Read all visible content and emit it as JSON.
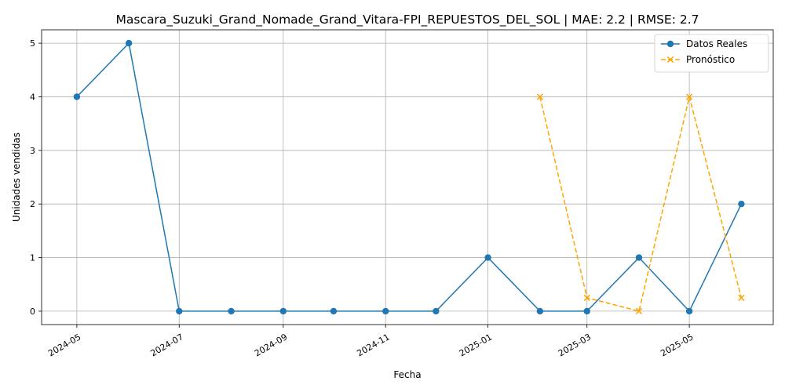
{
  "chart_data": {
    "type": "line",
    "title": "Mascara_Suzuki_Grand_Nomade_Grand_Vitara-FPI_REPUESTOS_DEL_SOL | MAE: 2.2 | RMSE: 2.7",
    "xlabel": "Fecha",
    "ylabel": "Unidades vendidas",
    "x_ticks": [
      "2024-05",
      "2024-07",
      "2024-09",
      "2024-11",
      "2025-01",
      "2025-03",
      "2025-05"
    ],
    "y_ticks": [
      "0",
      "1",
      "2",
      "3",
      "4",
      "5"
    ],
    "ylim": [
      -0.25,
      5.25
    ],
    "grid": true,
    "legend_position": "top-right",
    "series": [
      {
        "name": "Datos Reales",
        "color": "#1f77b4",
        "style": "solid",
        "marker": "circle",
        "x": [
          "2024-05-01",
          "2024-06-01",
          "2024-07-01",
          "2024-08-01",
          "2024-09-01",
          "2024-10-01",
          "2024-11-01",
          "2024-12-01",
          "2025-01-01",
          "2025-02-01",
          "2025-03-01",
          "2025-04-01",
          "2025-05-01",
          "2025-06-01"
        ],
        "values": [
          4,
          5,
          0,
          0,
          0,
          0,
          0,
          0,
          1,
          0,
          0,
          1,
          0,
          2
        ]
      },
      {
        "name": "Pronóstico",
        "color": "#ffa500",
        "style": "dashed",
        "marker": "x",
        "x": [
          "2025-02-01",
          "2025-03-01",
          "2025-04-01",
          "2025-05-01",
          "2025-06-01"
        ],
        "values": [
          4,
          0.25,
          0,
          4,
          0.25
        ]
      }
    ]
  }
}
